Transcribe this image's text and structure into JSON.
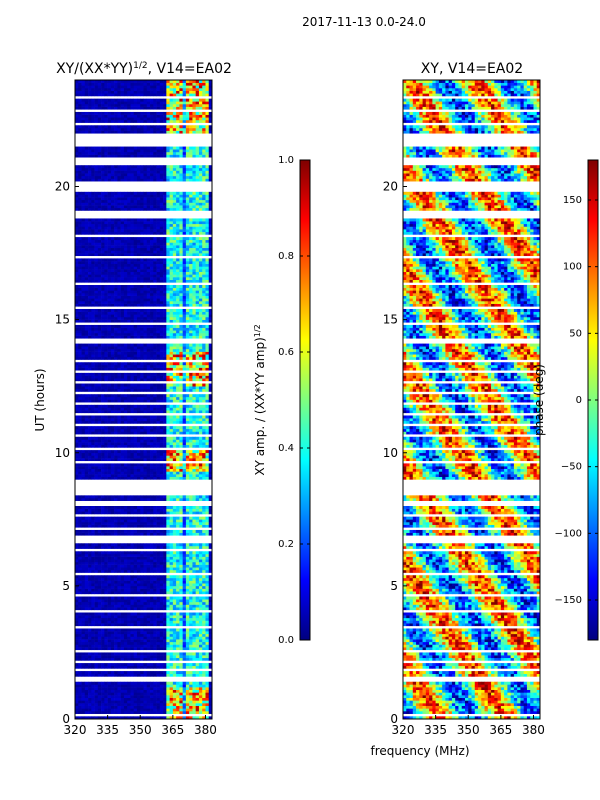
{
  "suptitle": "2017-11-13 0.0-24.0",
  "colors": {
    "jet": [
      "#00007f",
      "#0000ff",
      "#007fff",
      "#00ffff",
      "#7fff7f",
      "#ffff00",
      "#ff7f00",
      "#ff0000",
      "#7f0000"
    ],
    "masked": "#ffffff"
  },
  "chart_data": [
    {
      "type": "heatmap",
      "title_main": "XY/(XX*YY)",
      "title_sup": "1/2",
      "title_suffix": ", V14=EA02",
      "xlabel": "",
      "ylabel": "UT (hours)",
      "xlim": [
        320,
        383
      ],
      "ylim": [
        0,
        24
      ],
      "xticks": [
        "320",
        "335",
        "350",
        "365",
        "380"
      ],
      "xtick_values": [
        320,
        335,
        350,
        365,
        380
      ],
      "yticks": [
        "0",
        "5",
        "10",
        "15",
        "20"
      ],
      "ytick_values": [
        0,
        5,
        10,
        15,
        20
      ],
      "colorbar": {
        "label_main": "XY amp. / (XX*YY amp)",
        "label_sup": "1/2",
        "range": [
          0.0,
          1.0
        ],
        "ticks": [
          "0.0",
          "0.2",
          "0.4",
          "0.6",
          "0.8",
          "1.0"
        ],
        "tick_values": [
          0.0,
          0.2,
          0.4,
          0.6,
          0.8,
          1.0
        ]
      }
    },
    {
      "type": "heatmap",
      "title_main": "XY, V14=EA02",
      "xlabel": "frequency (MHz)",
      "ylabel": "",
      "xlim": [
        320,
        383
      ],
      "ylim": [
        0,
        24
      ],
      "xticks": [
        "320",
        "335",
        "350",
        "365",
        "380"
      ],
      "xtick_values": [
        320,
        335,
        350,
        365,
        380
      ],
      "yticks": [
        "0",
        "5",
        "10",
        "15",
        "20"
      ],
      "ytick_values": [
        0,
        5,
        10,
        15,
        20
      ],
      "colorbar": {
        "label_main": "phase (deg)",
        "range": [
          -180,
          180
        ],
        "ticks": [
          "−150",
          "−100",
          "−50",
          "0",
          "50",
          "100",
          "150"
        ],
        "tick_values": [
          -150,
          -100,
          -50,
          0,
          50,
          100,
          150
        ]
      }
    }
  ]
}
